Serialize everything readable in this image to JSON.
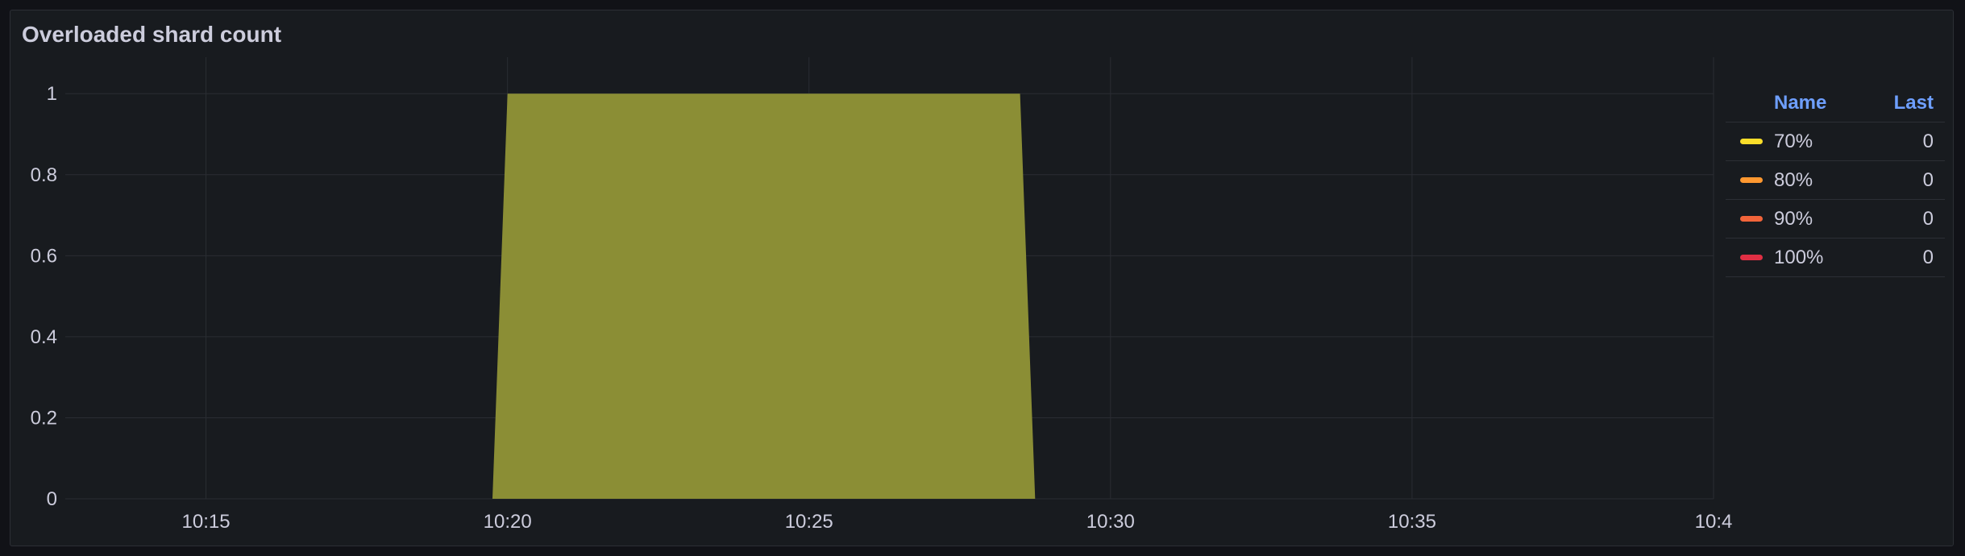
{
  "panel": {
    "title": "Overloaded shard count"
  },
  "legend": {
    "header_name": "Name",
    "header_last": "Last",
    "items": [
      {
        "name": "70%",
        "last": "0",
        "color": "#fade2a"
      },
      {
        "name": "80%",
        "last": "0",
        "color": "#ff9830"
      },
      {
        "name": "90%",
        "last": "0",
        "color": "#f2643a"
      },
      {
        "name": "100%",
        "last": "0",
        "color": "#e02f44"
      }
    ]
  },
  "chart_data": {
    "type": "area",
    "title": "Overloaded shard count",
    "xlabel": "",
    "ylabel": "",
    "x_ticks": [
      "10:15",
      "10:20",
      "10:25",
      "10:30",
      "10:35",
      "10:4"
    ],
    "y_ticks": [
      "0",
      "0.2",
      "0.4",
      "0.6",
      "0.8",
      "1"
    ],
    "ylim": [
      0,
      1.09
    ],
    "xlim": [
      "10:12:40",
      "10:40:00"
    ],
    "grid": true,
    "legend_position": "right",
    "series": [
      {
        "name": "70%",
        "color": "#fade2a",
        "fill": "#8b8e35",
        "points": [
          {
            "x": "10:19:45",
            "y": 0
          },
          {
            "x": "10:20:00",
            "y": 1
          },
          {
            "x": "10:28:30",
            "y": 1
          },
          {
            "x": "10:28:45",
            "y": 0
          }
        ]
      },
      {
        "name": "80%",
        "color": "#ff9830",
        "points": []
      },
      {
        "name": "90%",
        "color": "#f2643a",
        "points": []
      },
      {
        "name": "100%",
        "color": "#e02f44",
        "points": []
      }
    ]
  }
}
